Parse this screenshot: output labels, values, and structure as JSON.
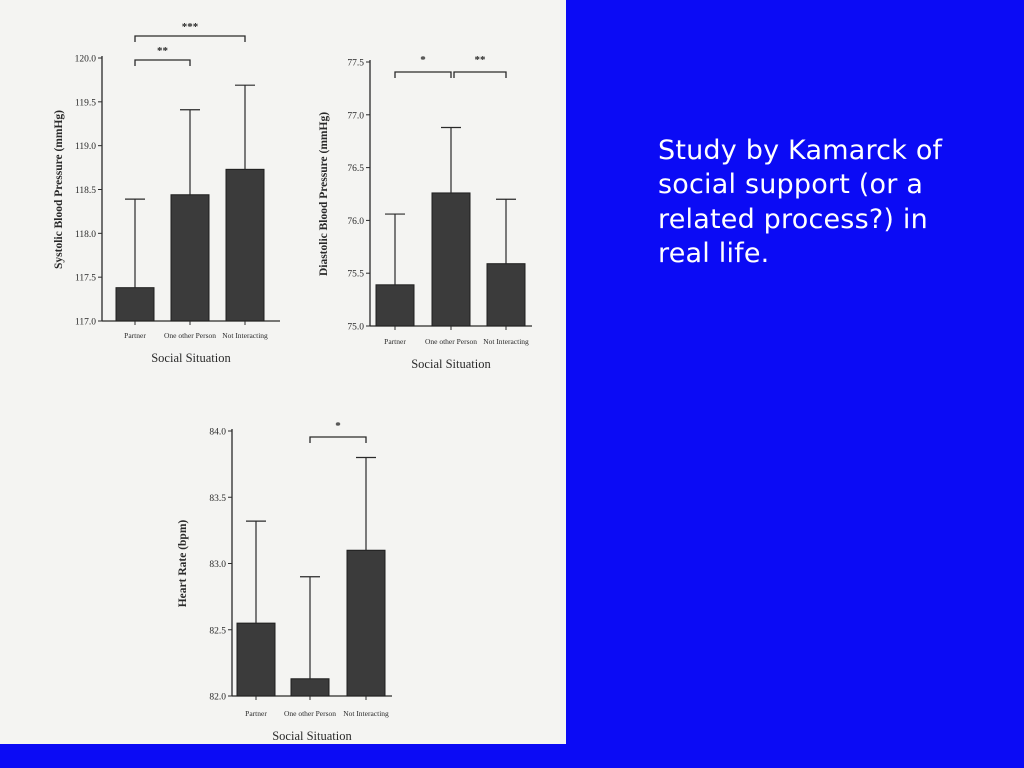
{
  "slide": {
    "text": "Study by Kamarck of social support (or a related process?) in real life.",
    "background_color": "#0b0bf5",
    "text_color": "#ffffff"
  },
  "chart_data": [
    {
      "type": "bar",
      "categories": [
        "Partner",
        "One other Person",
        "Not Interacting"
      ],
      "values": [
        117.38,
        118.44,
        118.73
      ],
      "error_upper": [
        118.39,
        119.41,
        119.69
      ],
      "xlabel": "Social Situation",
      "ylabel": "Systolic Blood Pressure (mmHg)",
      "ylim": [
        117.0,
        120.0
      ],
      "yticks": [
        "117.0",
        "117.5",
        "118.0",
        "118.5",
        "119.0",
        "119.5",
        "120.0"
      ],
      "significance": [
        {
          "from": 0,
          "to": 1,
          "label": "**"
        },
        {
          "from": 0,
          "to": 2,
          "label": "***"
        }
      ]
    },
    {
      "type": "bar",
      "categories": [
        "Partner",
        "One other Person",
        "Not Interacting"
      ],
      "values": [
        75.39,
        76.26,
        75.59
      ],
      "error_upper": [
        76.06,
        76.88,
        76.2
      ],
      "xlabel": "Social Situation",
      "ylabel": "Diastolic Blood Pressure (mmHg)",
      "ylim": [
        75.0,
        77.5
      ],
      "yticks": [
        "75.0",
        "75.5",
        "76.0",
        "76.5",
        "77.0",
        "77.5"
      ],
      "significance": [
        {
          "from": 0,
          "to": 1,
          "label": "*"
        },
        {
          "from": 1,
          "to": 2,
          "label": "**"
        }
      ]
    },
    {
      "type": "bar",
      "categories": [
        "Partner",
        "One other Person",
        "Not Interacting"
      ],
      "values": [
        82.55,
        82.13,
        83.1
      ],
      "error_upper": [
        83.32,
        82.9,
        83.8
      ],
      "xlabel": "Social Situation",
      "ylabel": "Heart Rate (bpm)",
      "ylim": [
        82.0,
        84.0
      ],
      "yticks": [
        "82.0",
        "82.5",
        "83.0",
        "83.5",
        "84.0"
      ],
      "significance": [
        {
          "from": 1,
          "to": 2,
          "label": "*"
        }
      ]
    }
  ]
}
